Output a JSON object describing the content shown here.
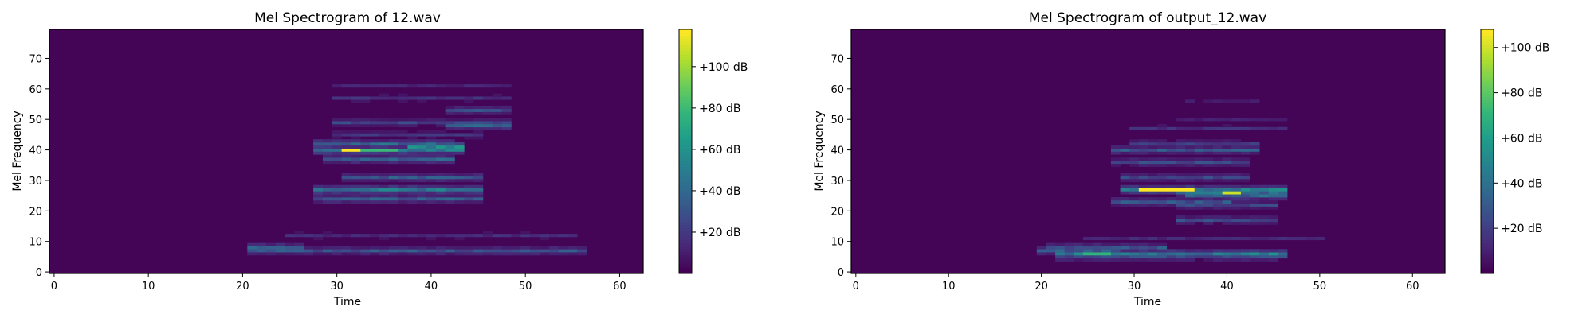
{
  "chart_data": [
    {
      "type": "heatmap",
      "title": "Mel Spectrogram of 12.wav",
      "xlabel": "Time",
      "ylabel": "Mel Frequency",
      "xlim": [
        -0.5,
        62.5
      ],
      "ylim": [
        -0.5,
        79.5
      ],
      "x_ticks": [
        0,
        10,
        20,
        30,
        40,
        50,
        60
      ],
      "y_ticks": [
        0,
        10,
        20,
        30,
        40,
        50,
        60,
        70
      ],
      "colormap": "viridis",
      "colorbar": {
        "range": [
          0,
          118
        ],
        "ticks": [
          20,
          40,
          60,
          80,
          100
        ],
        "tick_labels": [
          "+20 dB",
          "+40 dB",
          "+60 dB",
          "+80 dB",
          "+100 dB"
        ]
      },
      "grid": false,
      "activity": {
        "background_db": 3,
        "bands": [
          {
            "mel": 7,
            "t_start": 21,
            "t_end": 56,
            "db": 38
          },
          {
            "mel": 8,
            "t_start": 21,
            "t_end": 26,
            "db": 45
          },
          {
            "mel": 12,
            "t_start": 25,
            "t_end": 55,
            "db": 18
          },
          {
            "mel": 24,
            "t_start": 28,
            "t_end": 45,
            "db": 40
          },
          {
            "mel": 27,
            "t_start": 28,
            "t_end": 45,
            "db": 58
          },
          {
            "mel": 31,
            "t_start": 31,
            "t_end": 45,
            "db": 40
          },
          {
            "mel": 37,
            "t_start": 29,
            "t_end": 42,
            "db": 45
          },
          {
            "mel": 40,
            "t_start": 28,
            "t_end": 43,
            "db": 65
          },
          {
            "mel": 41,
            "t_start": 38,
            "t_end": 43,
            "db": 70
          },
          {
            "mel": 42,
            "t_start": 28,
            "t_end": 42,
            "db": 50
          },
          {
            "mel": 45,
            "t_start": 30,
            "t_end": 45,
            "db": 22
          },
          {
            "mel": 48,
            "t_start": 42,
            "t_end": 48,
            "db": 55
          },
          {
            "mel": 49,
            "t_start": 30,
            "t_end": 48,
            "db": 30
          },
          {
            "mel": 53,
            "t_start": 42,
            "t_end": 48,
            "db": 35
          },
          {
            "mel": 57,
            "t_start": 30,
            "t_end": 48,
            "db": 20
          },
          {
            "mel": 61,
            "t_start": 30,
            "t_end": 48,
            "db": 15
          }
        ],
        "peaks": [
          {
            "mel": 40,
            "t_start": 31,
            "t_end": 32,
            "db": 118
          },
          {
            "mel": 40,
            "t_start": 33,
            "t_end": 36,
            "db": 80
          }
        ]
      }
    },
    {
      "type": "heatmap",
      "title": "Mel Spectrogram of output_12.wav",
      "xlabel": "Time",
      "ylabel": "Mel Frequency",
      "xlim": [
        -0.5,
        63.5
      ],
      "ylim": [
        -0.5,
        79.5
      ],
      "x_ticks": [
        0,
        10,
        20,
        30,
        40,
        50,
        60
      ],
      "y_ticks": [
        0,
        10,
        20,
        30,
        40,
        50,
        60,
        70
      ],
      "colormap": "viridis",
      "colorbar": {
        "range": [
          0,
          108
        ],
        "ticks": [
          20,
          40,
          60,
          80,
          100
        ],
        "tick_labels": [
          "+20 dB",
          "+40 dB",
          "+60 dB",
          "+80 dB",
          "+100 dB"
        ]
      },
      "grid": false,
      "activity": {
        "background_db": 3,
        "bands": [
          {
            "mel": 5,
            "t_start": 22,
            "t_end": 46,
            "db": 30
          },
          {
            "mel": 6,
            "t_start": 22,
            "t_end": 46,
            "db": 55
          },
          {
            "mel": 7,
            "t_start": 20,
            "t_end": 28,
            "db": 40
          },
          {
            "mel": 8,
            "t_start": 21,
            "t_end": 33,
            "db": 35
          },
          {
            "mel": 11,
            "t_start": 25,
            "t_end": 50,
            "db": 15
          },
          {
            "mel": 17,
            "t_start": 35,
            "t_end": 45,
            "db": 30
          },
          {
            "mel": 22,
            "t_start": 35,
            "t_end": 45,
            "db": 30
          },
          {
            "mel": 23,
            "t_start": 28,
            "t_end": 40,
            "db": 35
          },
          {
            "mel": 25,
            "t_start": 36,
            "t_end": 46,
            "db": 45
          },
          {
            "mel": 26,
            "t_start": 35,
            "t_end": 46,
            "db": 50
          },
          {
            "mel": 27,
            "t_start": 29,
            "t_end": 46,
            "db": 55
          },
          {
            "mel": 31,
            "t_start": 29,
            "t_end": 42,
            "db": 30
          },
          {
            "mel": 36,
            "t_start": 28,
            "t_end": 42,
            "db": 30
          },
          {
            "mel": 40,
            "t_start": 28,
            "t_end": 43,
            "db": 38
          },
          {
            "mel": 42,
            "t_start": 30,
            "t_end": 43,
            "db": 25
          },
          {
            "mel": 47,
            "t_start": 30,
            "t_end": 46,
            "db": 18
          },
          {
            "mel": 50,
            "t_start": 35,
            "t_end": 46,
            "db": 12
          },
          {
            "mel": 56,
            "t_start": 36,
            "t_end": 43,
            "db": 10
          }
        ],
        "peaks": [
          {
            "mel": 6,
            "t_start": 25,
            "t_end": 27,
            "db": 70
          },
          {
            "mel": 27,
            "t_start": 31,
            "t_end": 36,
            "db": 108
          },
          {
            "mel": 26,
            "t_start": 40,
            "t_end": 41,
            "db": 100
          }
        ]
      }
    }
  ]
}
